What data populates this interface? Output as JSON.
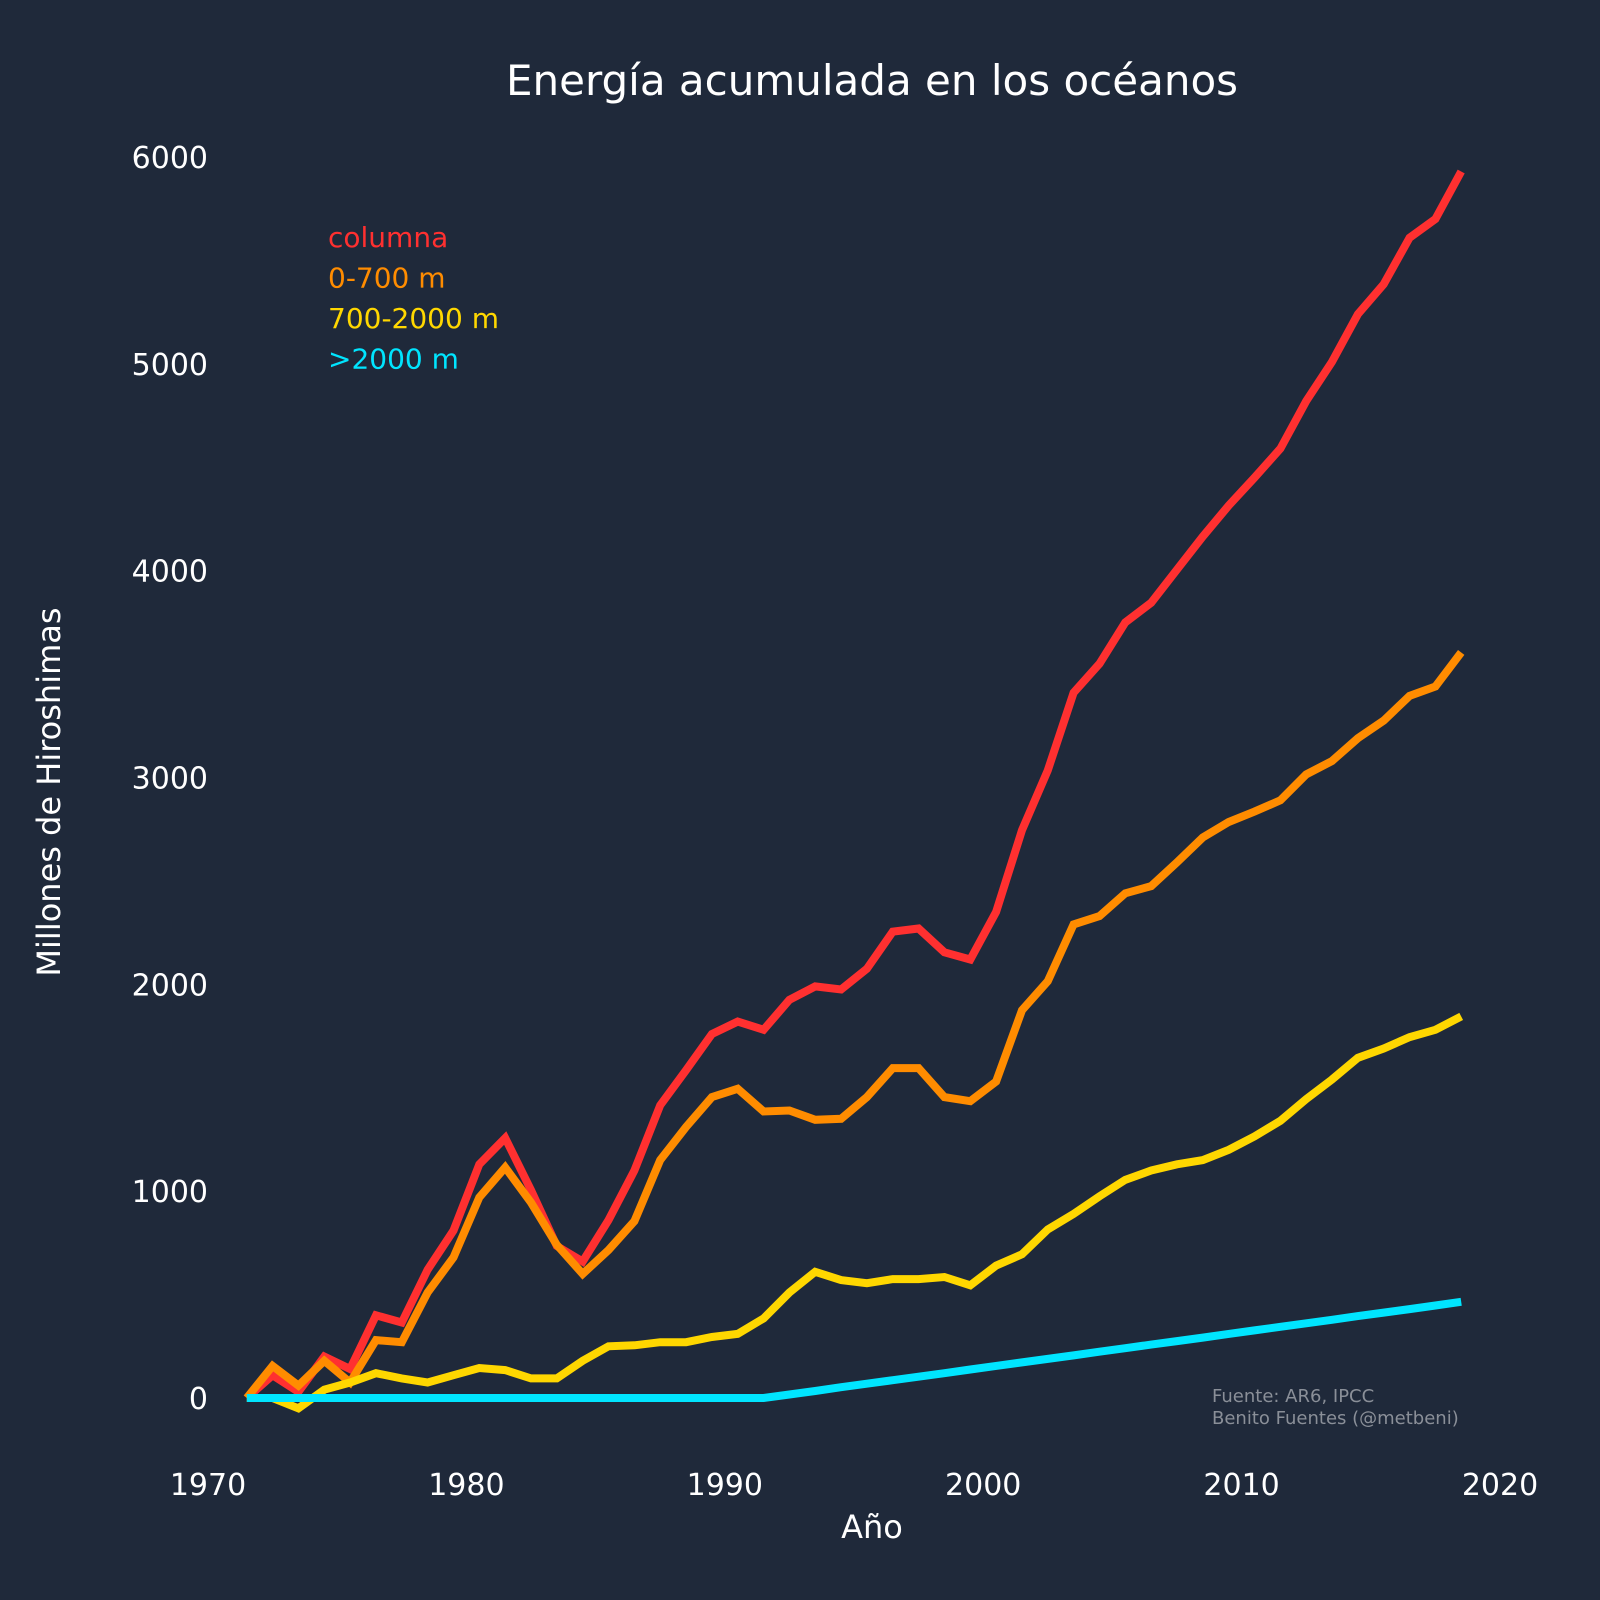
{
  "chart_data": {
    "type": "line",
    "title": "Energía acumulada en los océanos",
    "xlabel": "Año",
    "ylabel": "Millones de Hiroshimas",
    "xlim": [
      1970,
      2020
    ],
    "ylim": [
      -150,
      6100
    ],
    "xticks": [
      1970,
      1980,
      1990,
      2000,
      2010,
      2020
    ],
    "yticks": [
      0,
      1000,
      2000,
      3000,
      4000,
      5000,
      6000
    ],
    "grid": false,
    "legend_position": "top-left",
    "x": [
      1971,
      1972,
      1973,
      1974,
      1975,
      1976,
      1977,
      1978,
      1979,
      1980,
      1981,
      1982,
      1983,
      1984,
      1985,
      1986,
      1987,
      1988,
      1989,
      1990,
      1991,
      1992,
      1993,
      1994,
      1995,
      1996,
      1997,
      1998,
      1999,
      2000,
      2001,
      2002,
      2003,
      2004,
      2005,
      2006,
      2007,
      2008,
      2009,
      2010,
      2011,
      2012,
      2013,
      2014,
      2015,
      2016,
      2017,
      2018
    ],
    "series": [
      {
        "name": "columna",
        "color": "#ff3030",
        "values": [
          0,
          110,
          30,
          200,
          140,
          400,
          365,
          620,
          810,
          1130,
          1257,
          1005,
          735,
          660,
          860,
          1100,
          1415,
          1585,
          1760,
          1820,
          1780,
          1925,
          1990,
          1975,
          2075,
          2255,
          2270,
          2155,
          2120,
          2350,
          2745,
          3035,
          3410,
          3550,
          3750,
          3845,
          4005,
          4165,
          4315,
          4450,
          4590,
          4820,
          5010,
          5240,
          5385,
          5610,
          5700,
          5930
        ]
      },
      {
        "name": "0-700 m",
        "color": "#ff8c00",
        "values": [
          0,
          155,
          60,
          180,
          75,
          280,
          270,
          510,
          680,
          970,
          1115,
          945,
          740,
          600,
          715,
          855,
          1150,
          1310,
          1455,
          1495,
          1385,
          1390,
          1345,
          1350,
          1455,
          1595,
          1595,
          1455,
          1435,
          1530,
          1875,
          2015,
          2290,
          2330,
          2440,
          2475,
          2590,
          2710,
          2785,
          2835,
          2890,
          3015,
          3080,
          3190,
          3275,
          3395,
          3440,
          3605
        ]
      },
      {
        "name": "700-2000 m",
        "color": "#ffd700",
        "values": [
          0,
          0,
          -50,
          40,
          75,
          120,
          95,
          75,
          110,
          145,
          135,
          95,
          95,
          180,
          250,
          255,
          270,
          270,
          295,
          310,
          385,
          510,
          610,
          570,
          555,
          575,
          575,
          585,
          545,
          640,
          695,
          815,
          890,
          975,
          1055,
          1100,
          1130,
          1150,
          1200,
          1265,
          1340,
          1445,
          1540,
          1645,
          1690,
          1745,
          1780,
          1845
        ]
      },
      {
        "name": ">2000 m",
        "color": "#00e5ff",
        "values": [
          0,
          0,
          0,
          0,
          0,
          0,
          0,
          0,
          0,
          0,
          0,
          0,
          0,
          0,
          0,
          0,
          0,
          0,
          0,
          0,
          0,
          17,
          34,
          52,
          69,
          86,
          103,
          120,
          138,
          155,
          172,
          189,
          206,
          224,
          241,
          258,
          275,
          292,
          310,
          327,
          344,
          361,
          378,
          396,
          413,
          430,
          447,
          465
        ]
      }
    ],
    "annotations": {
      "source_line1": "Fuente: AR6, IPCC",
      "source_line2": "Benito Fuentes (@metbeni)"
    }
  },
  "colors": {
    "background": "#1f293a",
    "text": "#ffffff",
    "source_text": "#8a8f98"
  }
}
